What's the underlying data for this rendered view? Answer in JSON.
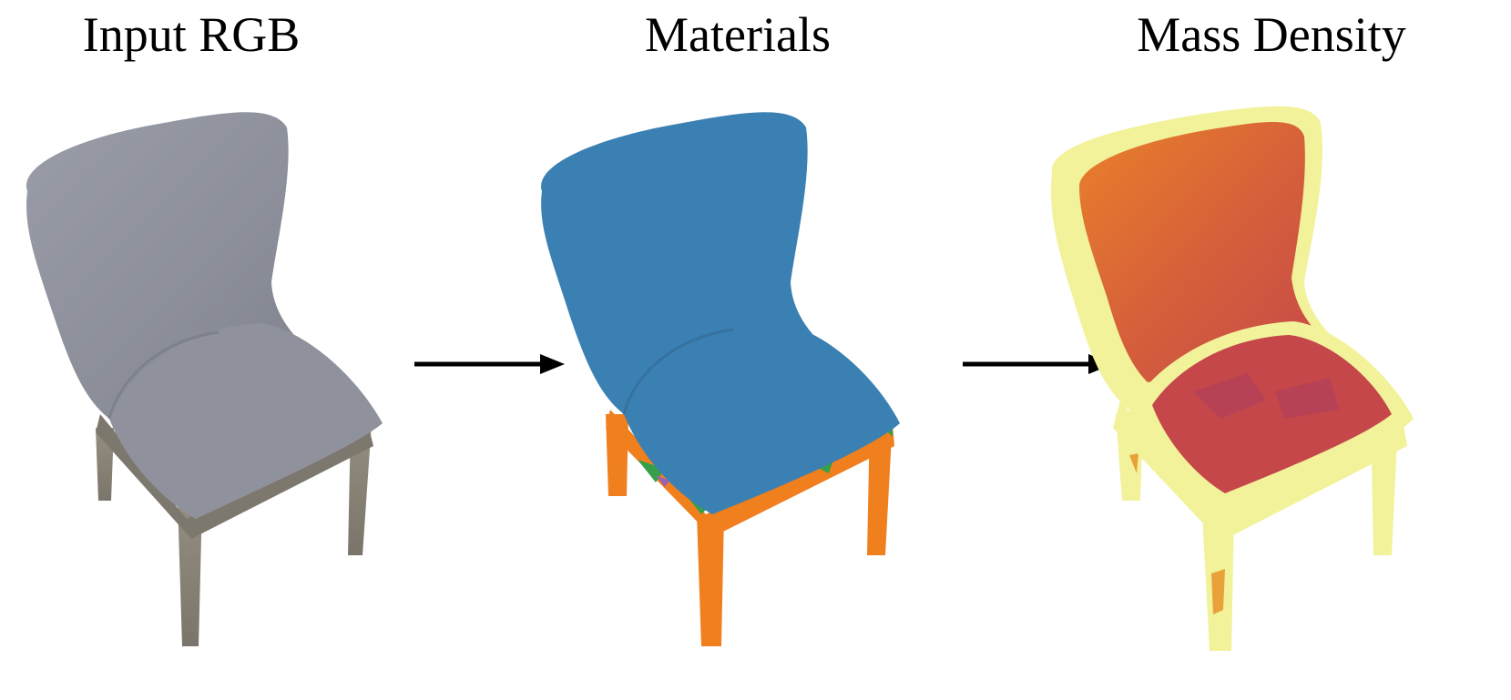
{
  "titles": {
    "input_rgb": "Input RGB",
    "materials": "Materials",
    "mass_density": "Mass Density"
  },
  "colors": {
    "fabric_gray": "#8e919c",
    "wood_gray": "#8a8478",
    "material_fabric": "#3a80b2",
    "material_wood": "#f07f1d",
    "material_green": "#35a049",
    "material_purple": "#9b5fb6",
    "density_low": "#f2f29a",
    "density_mid": "#e9812a",
    "density_high": "#c5474a"
  }
}
